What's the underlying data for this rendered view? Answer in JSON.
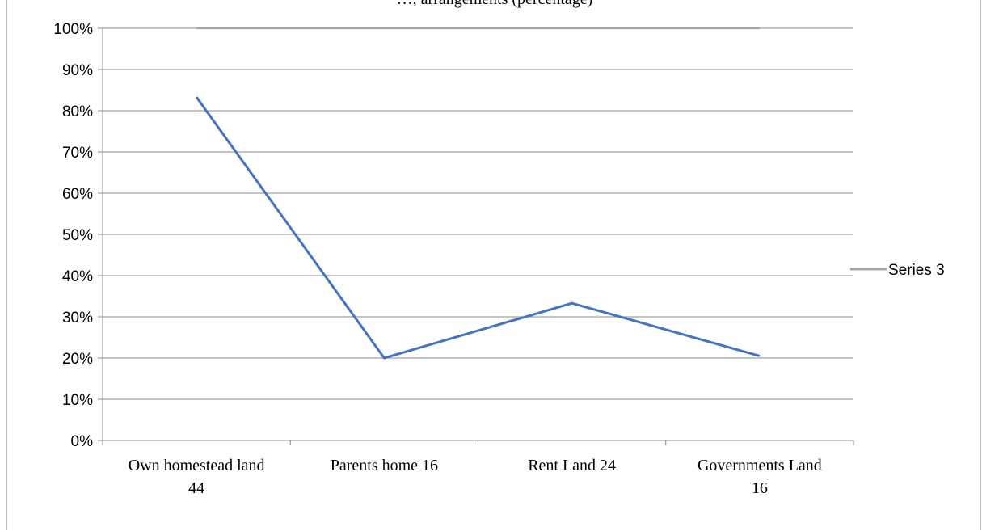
{
  "chart_data": {
    "type": "line",
    "title": "…, arrangements (percentage)",
    "categories": [
      [
        "Own homestead land",
        "44"
      ],
      [
        "Parents home 16"
      ],
      [
        "Rent Land 24"
      ],
      [
        "Governments Land",
        "16"
      ]
    ],
    "y_ticks": [
      "0%",
      "10%",
      "20%",
      "30%",
      "40%",
      "50%",
      "60%",
      "70%",
      "80%",
      "90%",
      "100%"
    ],
    "ylim": [
      0,
      100
    ],
    "grid": true,
    "legend_position": "right",
    "series": [
      {
        "values": [
          83.3,
          20,
          33.3,
          20.5
        ],
        "color": "#4472c4",
        "in_legend": false
      },
      {
        "name": "Series 3",
        "values": [
          100,
          100,
          100,
          100
        ],
        "color": "#a5a5a5",
        "in_legend": true
      }
    ]
  }
}
